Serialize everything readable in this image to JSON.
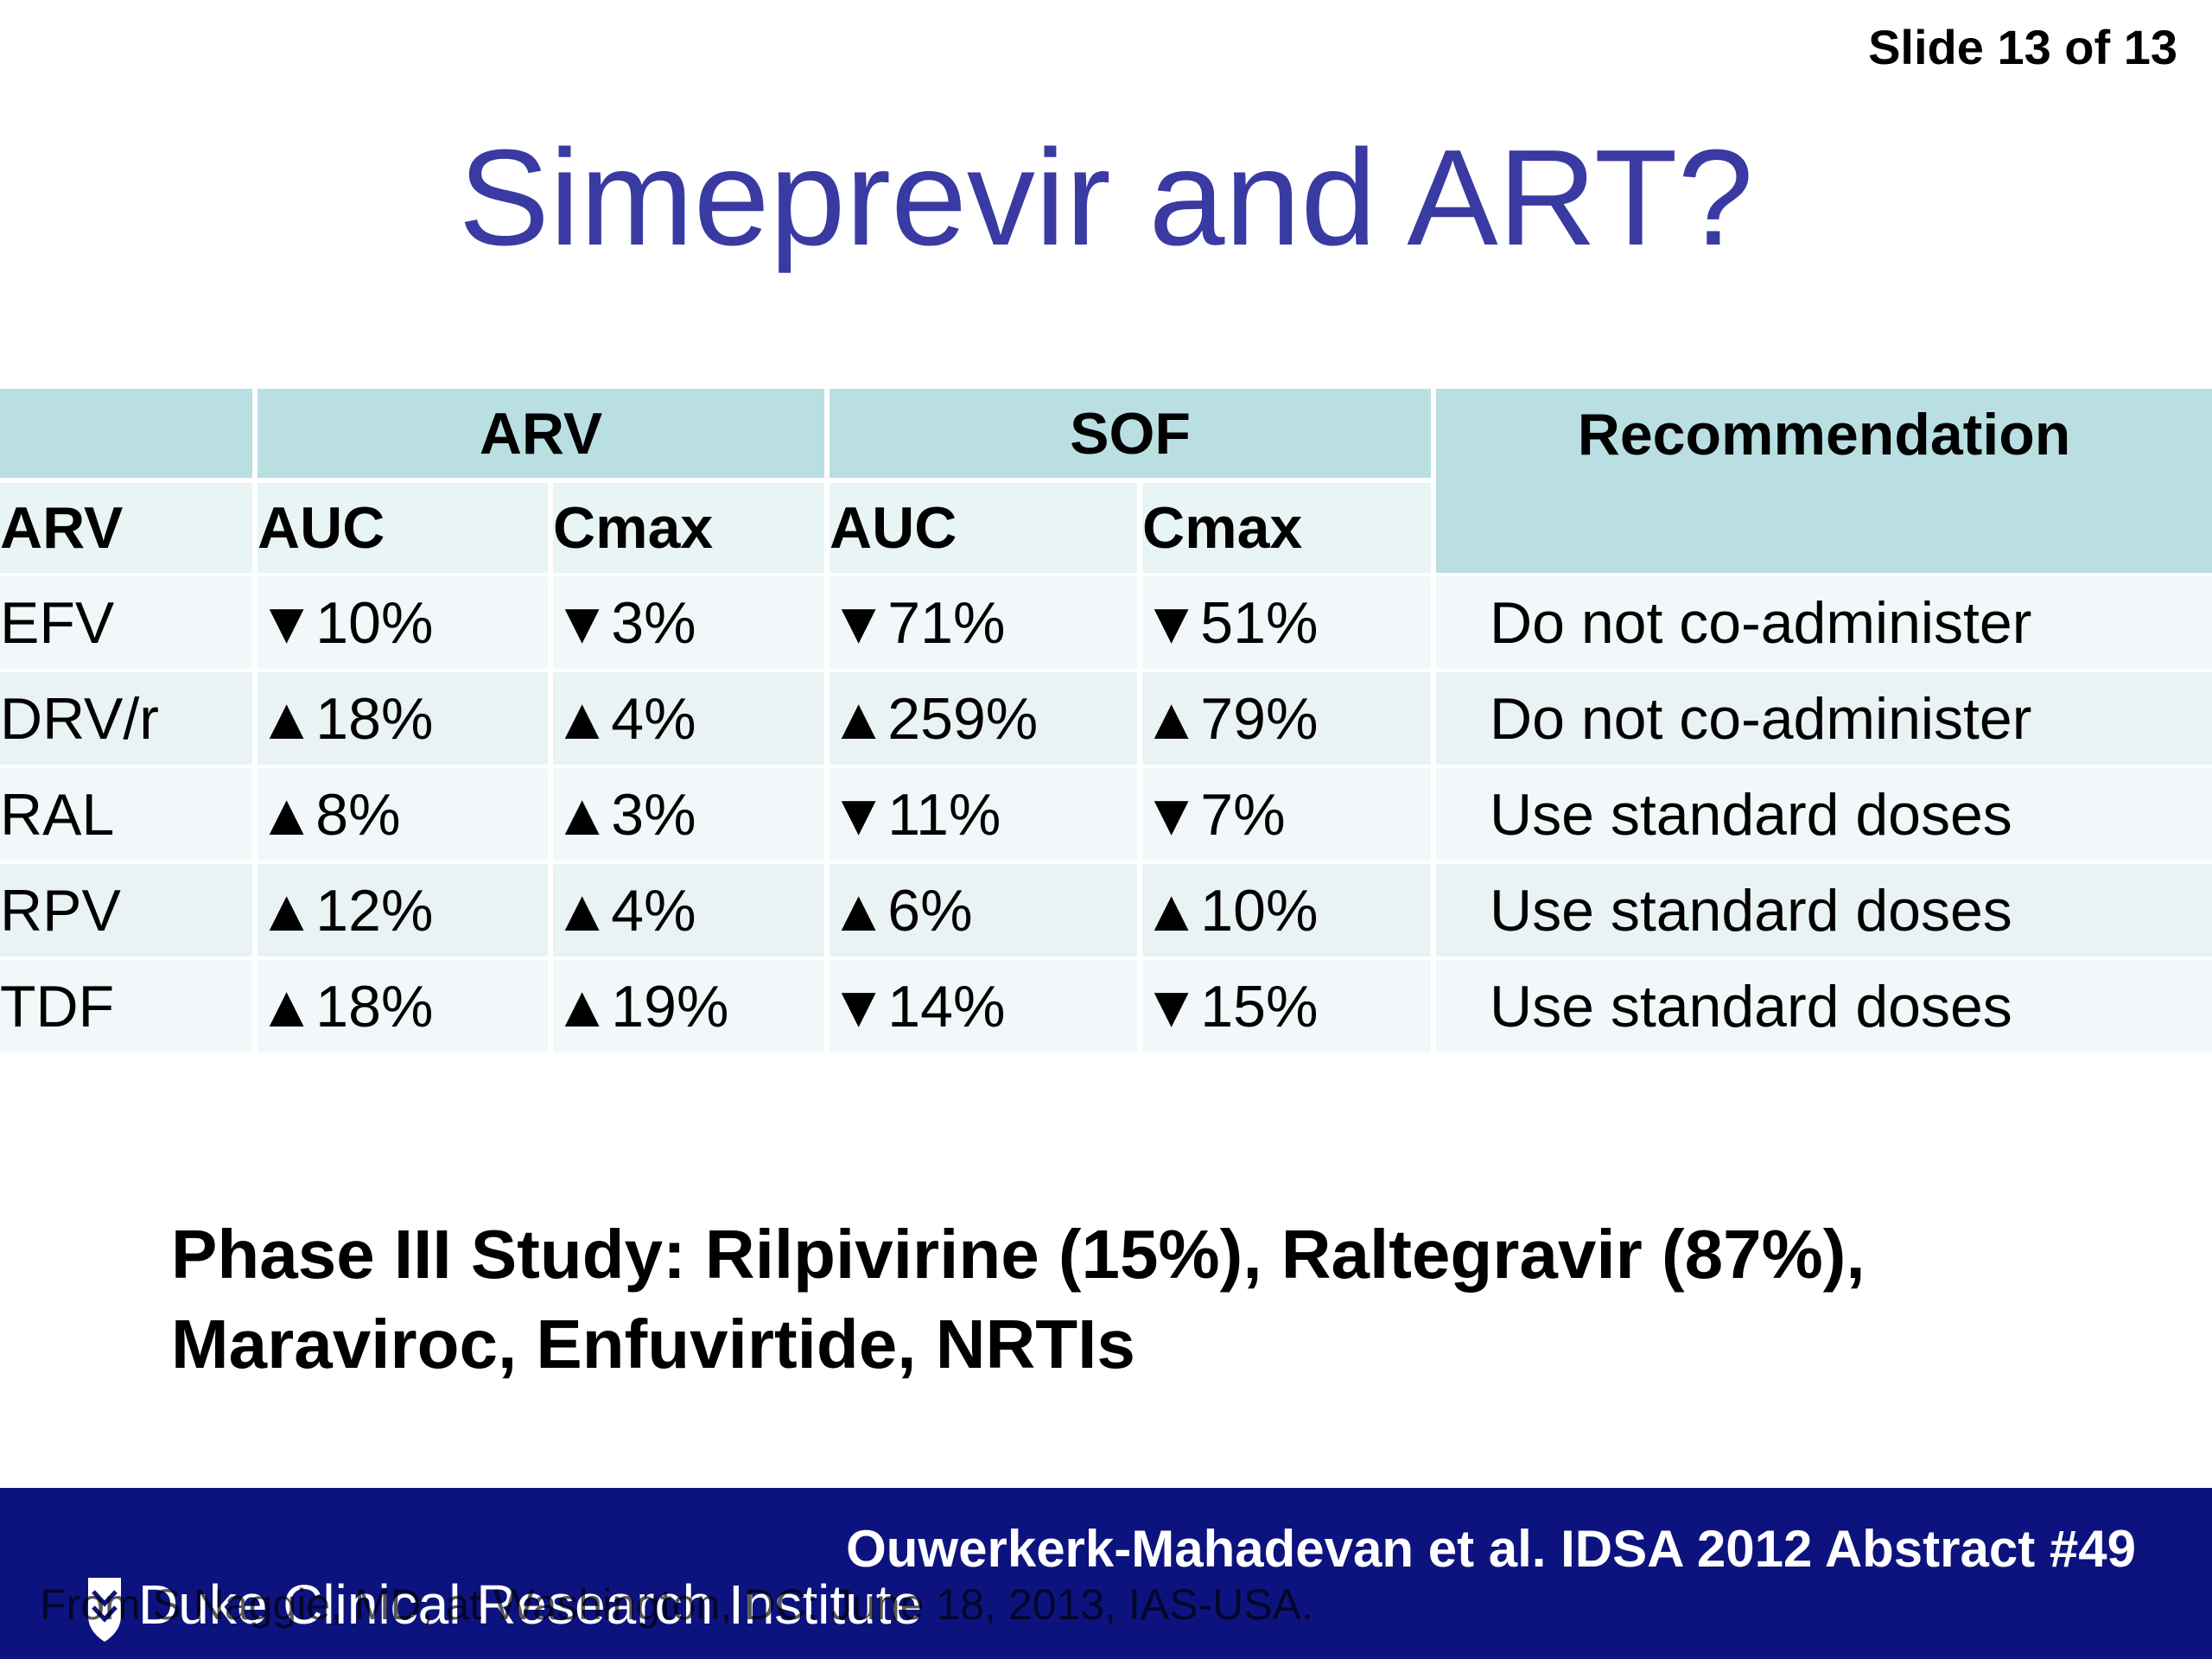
{
  "slide_number": "Slide 13 of 13",
  "title": "Simeprevir and ART?",
  "table": {
    "group_headers": {
      "arv": "ARV",
      "sof": "SOF",
      "recommendation": "Recommendation"
    },
    "sub_headers": [
      "ARV",
      "AUC",
      "Cmax",
      "AUC",
      "Cmax"
    ],
    "rows": [
      {
        "arv": "EFV",
        "arv_auc": "▼10%",
        "arv_cmax": "▼3%",
        "sof_auc": "▼71%",
        "sof_cmax": "▼51%",
        "rec": "Do not co-administer",
        "warn": true
      },
      {
        "arv": "DRV/r",
        "arv_auc": "▲18%",
        "arv_cmax": "▲4%",
        "sof_auc": "▲259%",
        "sof_cmax": "▲79%",
        "rec": "Do not co-administer",
        "warn": true
      },
      {
        "arv": "RAL",
        "arv_auc": "▲8%",
        "arv_cmax": "▲3%",
        "sof_auc": "▼11%",
        "sof_cmax": "▼7%",
        "rec": "Use standard doses",
        "warn": false
      },
      {
        "arv": "RPV",
        "arv_auc": "▲12%",
        "arv_cmax": "▲4%",
        "sof_auc": "▲6%",
        "sof_cmax": "▲10%",
        "rec": "Use standard doses",
        "warn": false
      },
      {
        "arv": "TDF",
        "arv_auc": "▲18%",
        "arv_cmax": "▲19%",
        "sof_auc": "▼14%",
        "sof_cmax": "▼15%",
        "rec": "Use standard doses",
        "warn": false
      }
    ]
  },
  "note_line1": "Phase III Study: Rilpivirine (15%), Raltegravir (87%),",
  "note_line2": "Maraviroc, Enfuvirtide, NRTIs",
  "citation": "Ouwerkerk-Mahadevan et al. IDSA 2012 Abstract #49",
  "logo_text": "Duke Clinical Research Institute",
  "from_note": "From S Naggie, MD, at Washington, DC: June 18, 2013, IAS-USA.",
  "colors": {
    "title": "#3a3aa3",
    "header": "#b9dfe3",
    "warn": "#ff0000",
    "footer": "#0d137e"
  }
}
